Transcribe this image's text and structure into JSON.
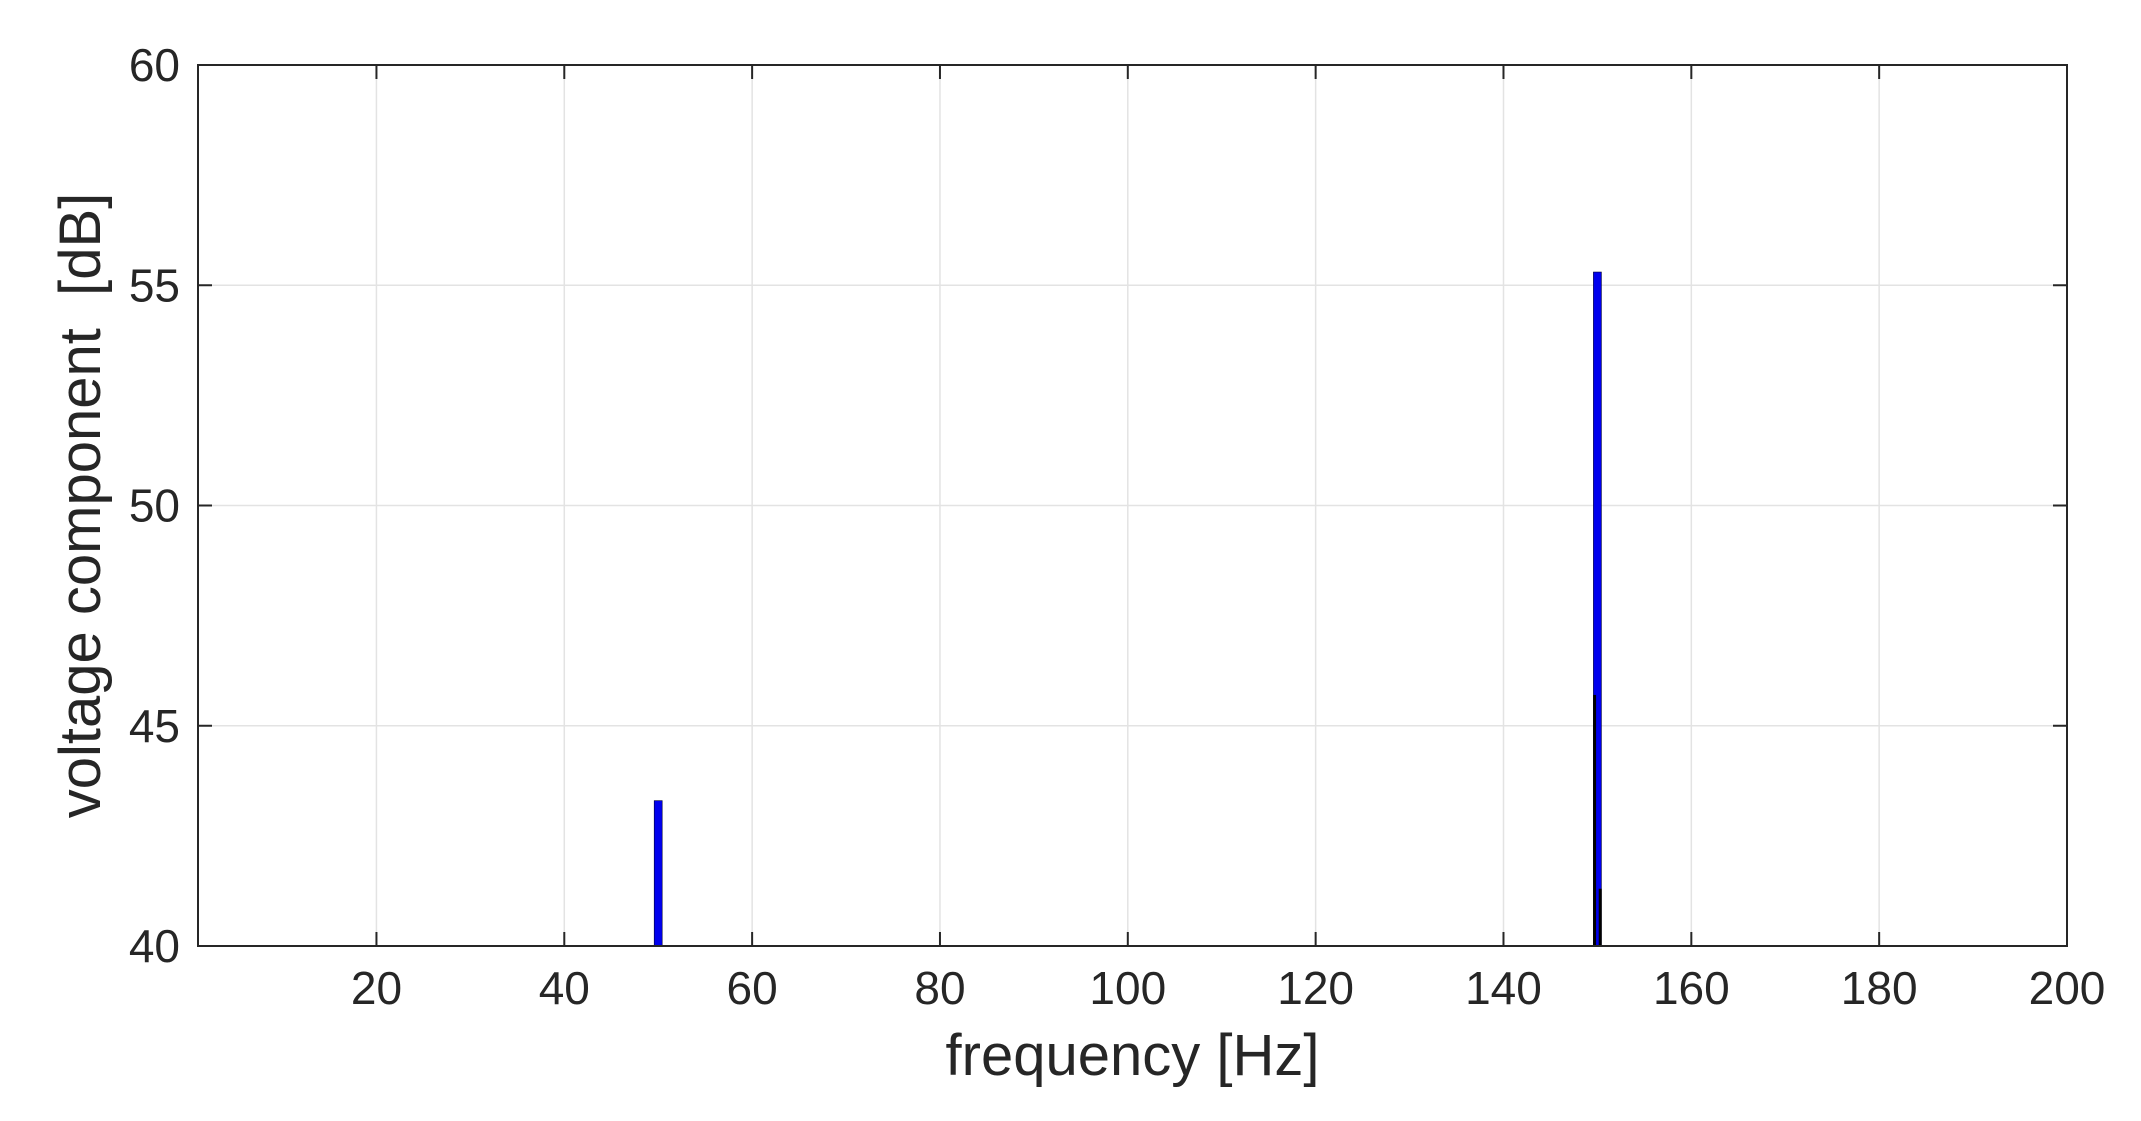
{
  "chart_data": {
    "type": "bar",
    "title": "",
    "xlabel": "frequency [Hz]",
    "ylabel": "voltage component  [dB]",
    "xlim": [
      1,
      200
    ],
    "ylim": [
      40,
      60
    ],
    "xticks": [
      20,
      40,
      60,
      80,
      100,
      120,
      140,
      160,
      180,
      200
    ],
    "yticks": [
      40,
      45,
      50,
      55,
      60
    ],
    "grid": true,
    "legend": "none",
    "series": [
      {
        "color": "#0000ee",
        "bars": [
          {
            "x": 50,
            "y": 43.3
          },
          {
            "x": 150,
            "y": 55.3
          }
        ]
      },
      {
        "color": "#000000",
        "bars": [
          {
            "x": 149.7,
            "y": 45.7
          },
          {
            "x": 150.3,
            "y": 41.3
          }
        ]
      }
    ]
  }
}
